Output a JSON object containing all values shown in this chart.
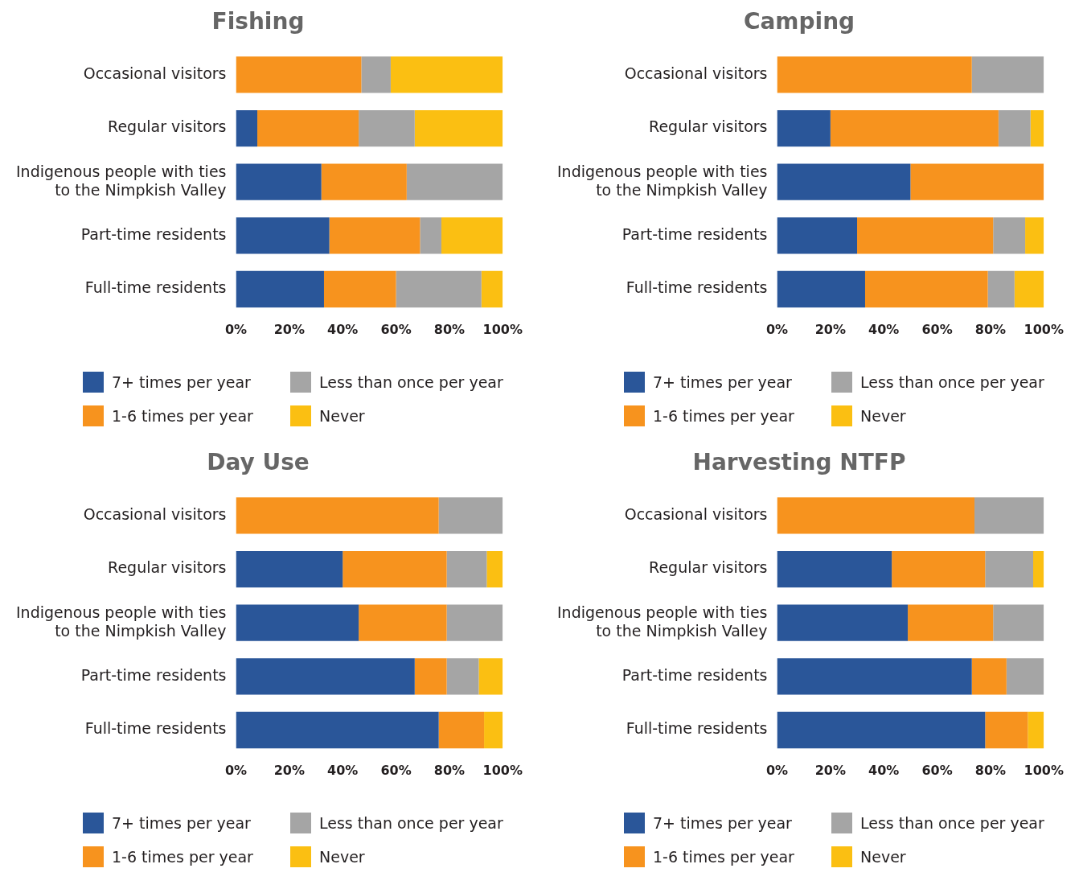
{
  "chart_data": [
    {
      "type": "bar",
      "orientation": "horizontal",
      "stacked": true,
      "title": "Fishing",
      "categories": [
        "Occasional visitors",
        "Regular visitors",
        "Indigenous people with ties to the Nimpkish Valley",
        "Part-time residents",
        "Full-time residents"
      ],
      "series": [
        {
          "name": "7+ times per year",
          "color": "#2a5699",
          "values": [
            0,
            8,
            32,
            35,
            33
          ]
        },
        {
          "name": "1-6 times per year",
          "color": "#f7931e",
          "values": [
            47,
            38,
            32,
            34,
            27
          ]
        },
        {
          "name": "Less than once per year",
          "color": "#a5a5a5",
          "values": [
            11,
            21,
            36,
            8,
            32
          ]
        },
        {
          "name": "Never",
          "color": "#fbbf12",
          "values": [
            42,
            33,
            0,
            23,
            8
          ]
        }
      ],
      "xlim": [
        0,
        100
      ],
      "xticks": [
        {
          "value": 0,
          "label": "0%"
        },
        {
          "value": 20,
          "label": "20%"
        },
        {
          "value": 40,
          "label": "40%"
        },
        {
          "value": 60,
          "label": "60%"
        },
        {
          "value": 80,
          "label": "80%"
        },
        {
          "value": 100,
          "label": "100%"
        }
      ],
      "grid": false,
      "legend": "bottom"
    },
    {
      "type": "bar",
      "orientation": "horizontal",
      "stacked": true,
      "title": "Camping",
      "categories": [
        "Occasional visitors",
        "Regular visitors",
        "Indigenous people with ties to the Nimpkish Valley",
        "Part-time residents",
        "Full-time residents"
      ],
      "series": [
        {
          "name": "7+ times per year",
          "color": "#2a5699",
          "values": [
            0,
            20,
            50,
            30,
            33
          ]
        },
        {
          "name": "1-6 times per year",
          "color": "#f7931e",
          "values": [
            73,
            63,
            50,
            51,
            46
          ]
        },
        {
          "name": "Less than once per year",
          "color": "#a5a5a5",
          "values": [
            27,
            12,
            0,
            12,
            10
          ]
        },
        {
          "name": "Never",
          "color": "#fbbf12",
          "values": [
            0,
            5,
            0,
            7,
            11
          ]
        }
      ],
      "xlim": [
        0,
        100
      ],
      "xticks": [
        {
          "value": 0,
          "label": "0%"
        },
        {
          "value": 20,
          "label": "20%"
        },
        {
          "value": 40,
          "label": "40%"
        },
        {
          "value": 60,
          "label": "60%"
        },
        {
          "value": 80,
          "label": "80%"
        },
        {
          "value": 100,
          "label": "100%"
        }
      ],
      "grid": false,
      "legend": "bottom"
    },
    {
      "type": "bar",
      "orientation": "horizontal",
      "stacked": true,
      "title": "Day Use",
      "categories": [
        "Occasional visitors",
        "Regular visitors",
        "Indigenous people with ties to the Nimpkish Valley",
        "Part-time residents",
        "Full-time residents"
      ],
      "series": [
        {
          "name": "7+ times per year",
          "color": "#2a5699",
          "values": [
            0,
            40,
            46,
            67,
            76
          ]
        },
        {
          "name": "1-6 times per year",
          "color": "#f7931e",
          "values": [
            76,
            39,
            33,
            12,
            17
          ]
        },
        {
          "name": "Less than once per year",
          "color": "#a5a5a5",
          "values": [
            24,
            15,
            21,
            12,
            0
          ]
        },
        {
          "name": "Never",
          "color": "#fbbf12",
          "values": [
            0,
            6,
            0,
            9,
            7
          ]
        }
      ],
      "xlim": [
        0,
        100
      ],
      "xticks": [
        {
          "value": 0,
          "label": "0%"
        },
        {
          "value": 20,
          "label": "20%"
        },
        {
          "value": 40,
          "label": "40%"
        },
        {
          "value": 60,
          "label": "60%"
        },
        {
          "value": 80,
          "label": "80%"
        },
        {
          "value": 100,
          "label": "100%"
        }
      ],
      "grid": false,
      "legend": "bottom"
    },
    {
      "type": "bar",
      "orientation": "horizontal",
      "stacked": true,
      "title": "Harvesting NTFP",
      "categories": [
        "Occasional visitors",
        "Regular visitors",
        "Indigenous people with ties to the Nimpkish Valley",
        "Part-time residents",
        "Full-time residents"
      ],
      "series": [
        {
          "name": "7+ times per year",
          "color": "#2a5699",
          "values": [
            0,
            43,
            49,
            73,
            78
          ]
        },
        {
          "name": "1-6 times per year",
          "color": "#f7931e",
          "values": [
            74,
            35,
            32,
            13,
            16
          ]
        },
        {
          "name": "Less than once per year",
          "color": "#a5a5a5",
          "values": [
            26,
            18,
            19,
            14,
            0
          ]
        },
        {
          "name": "Never",
          "color": "#fbbf12",
          "values": [
            0,
            4,
            0,
            0,
            6
          ]
        }
      ],
      "xlim": [
        0,
        100
      ],
      "xticks": [
        {
          "value": 0,
          "label": "0%"
        },
        {
          "value": 20,
          "label": "20%"
        },
        {
          "value": 40,
          "label": "40%"
        },
        {
          "value": 60,
          "label": "60%"
        },
        {
          "value": 80,
          "label": "80%"
        },
        {
          "value": 100,
          "label": "100%"
        }
      ],
      "grid": false,
      "legend": "bottom"
    }
  ]
}
